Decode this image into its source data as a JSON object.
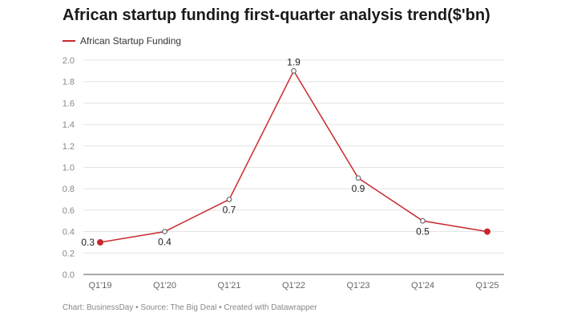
{
  "chart_data": {
    "type": "line",
    "title": "African startup funding first-quarter analysis trend($'bn)",
    "categories": [
      "Q1'19",
      "Q1'20",
      "Q1'21",
      "Q1'22",
      "Q1'23",
      "Q1'24",
      "Q1'25"
    ],
    "series": [
      {
        "name": "African Startup Funding",
        "values": [
          0.3,
          0.4,
          0.7,
          1.9,
          0.9,
          0.5,
          0.4
        ]
      }
    ],
    "data_labels": [
      "0.3",
      "0.4",
      "0.7",
      "1.9",
      "0.9",
      "0.5",
      ""
    ],
    "yticks": [
      "0.0",
      "0.2",
      "0.4",
      "0.6",
      "0.8",
      "1.0",
      "1.2",
      "1.4",
      "1.6",
      "1.8",
      "2.0"
    ],
    "ylim": [
      0,
      2.0
    ],
    "grid": true,
    "legend_position": "top-left",
    "line_color": "#c9282d",
    "footer": "Chart: BusinessDay • Source: The Big Deal • Created with Datawrapper"
  }
}
